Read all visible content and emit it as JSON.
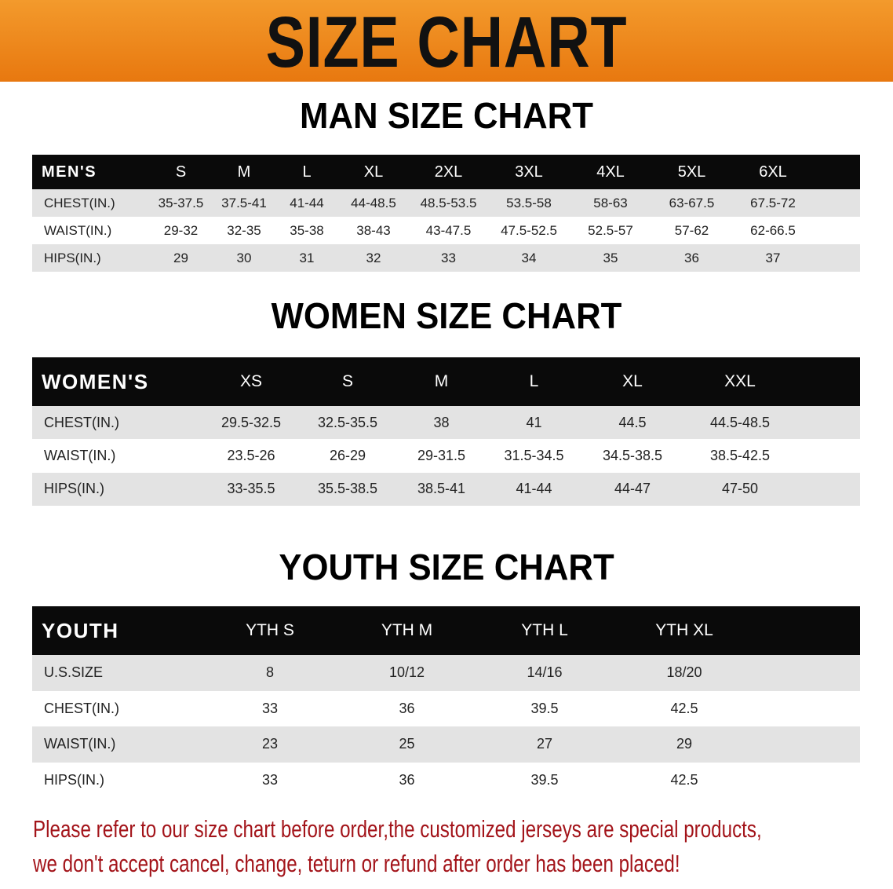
{
  "banner": {
    "title": "SIZE CHART",
    "color": "#ee8419"
  },
  "men": {
    "heading": "MAN SIZE CHART",
    "header": [
      "MEN'S",
      "S",
      "M",
      "L",
      "XL",
      "2XL",
      "3XL",
      "4XL",
      "5XL",
      "6XL"
    ],
    "rows": [
      [
        "CHEST(IN.)",
        "35-37.5",
        "37.5-41",
        "41-44",
        "44-48.5",
        "48.5-53.5",
        "53.5-58",
        "58-63",
        "63-67.5",
        "67.5-72"
      ],
      [
        "WAIST(IN.)",
        "29-32",
        "32-35",
        "35-38",
        "38-43",
        "43-47.5",
        "47.5-52.5",
        "52.5-57",
        "57-62",
        "62-66.5"
      ],
      [
        "HIPS(IN.)",
        "29",
        "30",
        "31",
        "32",
        "33",
        "34",
        "35",
        "36",
        "37"
      ]
    ]
  },
  "women": {
    "heading": "WOMEN SIZE CHART",
    "header": [
      "WOMEN'S",
      "XS",
      "S",
      "M",
      "L",
      "XL",
      "XXL"
    ],
    "rows": [
      [
        "CHEST(IN.)",
        "29.5-32.5",
        "32.5-35.5",
        "38",
        "41",
        "44.5",
        "44.5-48.5"
      ],
      [
        "WAIST(IN.)",
        "23.5-26",
        "26-29",
        "29-31.5",
        "31.5-34.5",
        "34.5-38.5",
        "38.5-42.5"
      ],
      [
        "HIPS(IN.)",
        "33-35.5",
        "35.5-38.5",
        "38.5-41",
        "41-44",
        "44-47",
        "47-50"
      ]
    ]
  },
  "youth": {
    "heading": "YOUTH SIZE CHART",
    "header": [
      "YOUTH",
      "YTH S",
      "YTH M",
      "YTH L",
      "YTH XL"
    ],
    "rows": [
      [
        "U.S.SIZE",
        "8",
        "10/12",
        "14/16",
        "18/20"
      ],
      [
        "CHEST(IN.)",
        "33",
        "36",
        "39.5",
        "42.5"
      ],
      [
        "WAIST(IN.)",
        "23",
        "25",
        "27",
        "29"
      ],
      [
        "HIPS(IN.)",
        "33",
        "36",
        "39.5",
        "42.5"
      ]
    ]
  },
  "notice": {
    "line1": "Please refer to our size chart before order,the customized jerseys are special products,",
    "line2": "we don't accept cancel, change, teturn or refund after order has been placed!",
    "color": "#a3141a"
  }
}
